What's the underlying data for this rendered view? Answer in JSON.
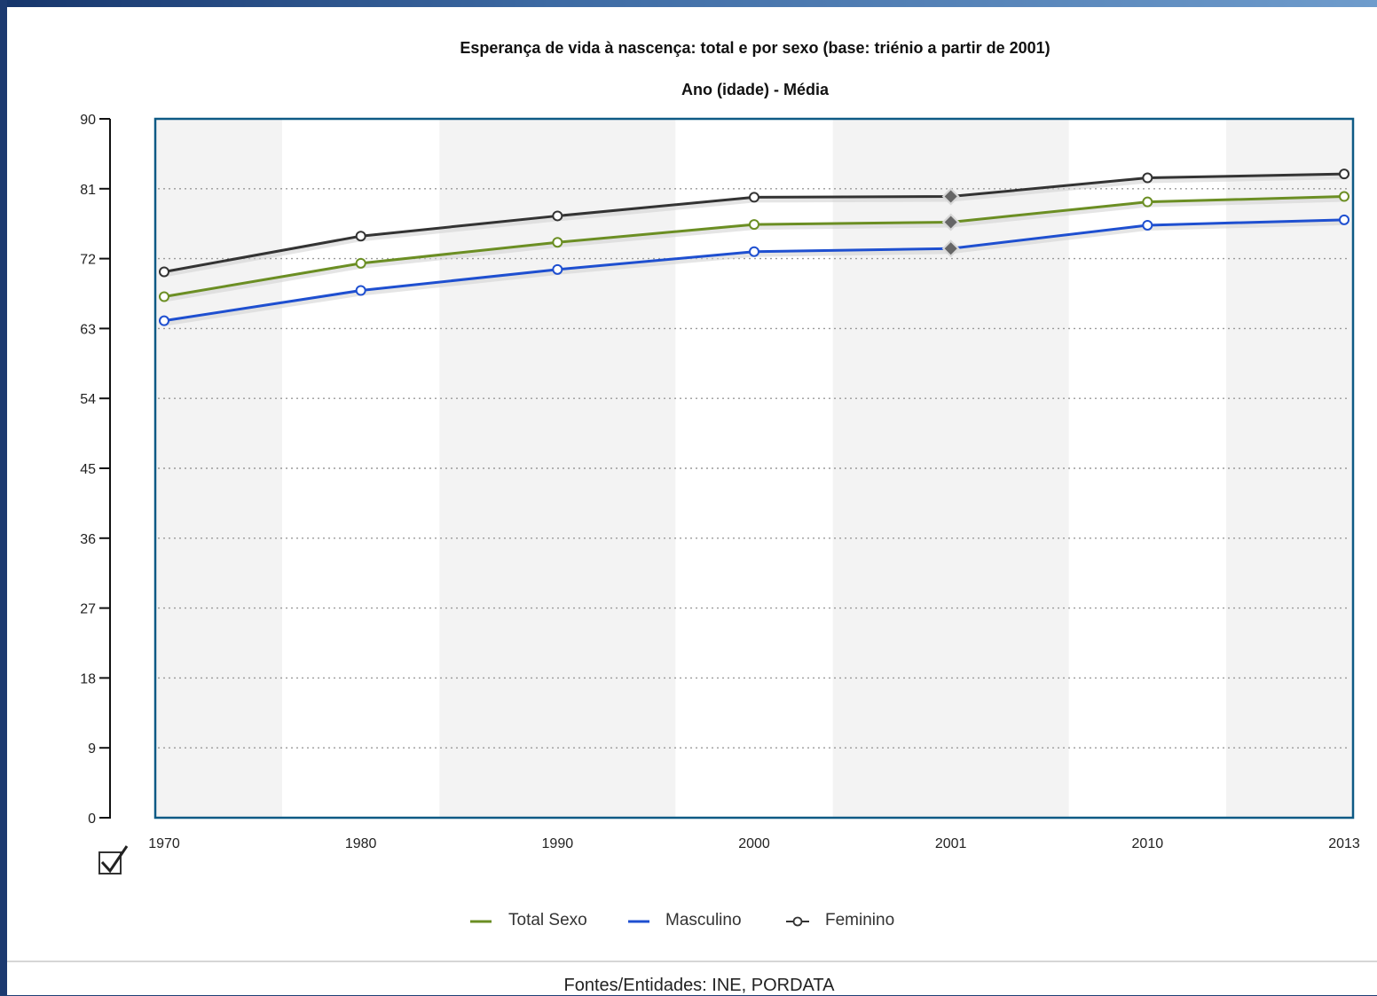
{
  "chart_data": {
    "type": "line",
    "title": "Esperança de vida à nascença: total e por sexo (base: triénio a partir de 2001)",
    "subtitle": "Ano (idade) - Média",
    "categories": [
      "1970",
      "1980",
      "1990",
      "2000",
      "2001",
      "2010",
      "2013"
    ],
    "series": [
      {
        "name": "Total Sexo",
        "color": "#6b8e23",
        "values": [
          67.1,
          71.4,
          74.1,
          76.4,
          76.7,
          79.3,
          80.0
        ]
      },
      {
        "name": "Masculino",
        "color": "#1e4fd0",
        "values": [
          64.0,
          67.9,
          70.6,
          72.9,
          73.3,
          76.3,
          77.0
        ]
      },
      {
        "name": "Feminino",
        "color": "#333333",
        "values": [
          70.3,
          74.9,
          77.5,
          79.9,
          80.0,
          82.4,
          82.9
        ]
      }
    ],
    "highlighted_category": "2001",
    "ylim": [
      0,
      90
    ],
    "yticks": [
      0,
      9,
      18,
      27,
      36,
      45,
      54,
      63,
      72,
      81,
      90
    ],
    "grid": "dotted horizontal",
    "legend_position": "bottom"
  },
  "source_label": "Fontes/Entidades: INE, PORDATA",
  "icons": {
    "checkbox": "checkbox-checked-icon"
  }
}
